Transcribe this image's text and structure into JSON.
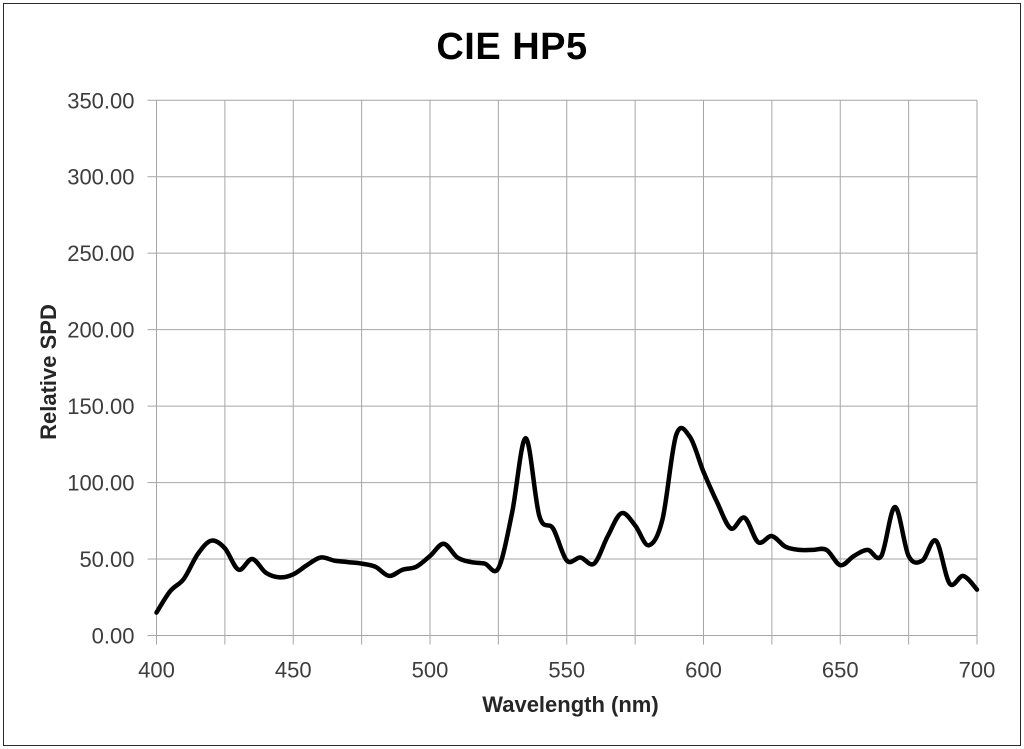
{
  "window": {
    "background": "#ffffff",
    "border_color": "#2b2b2b"
  },
  "chart": {
    "title": "CIE HP5",
    "xlabel": "Wavelength (nm)",
    "ylabel": "Relative SPD"
  },
  "colors": {
    "grid": "#a6a6a6",
    "axis": "#a6a6a6",
    "curve": "#000000",
    "tick_label": "#3d3d3d",
    "axis_title": "#262626",
    "title": "#000000"
  },
  "chart_data": {
    "type": "line",
    "title": "CIE HP5",
    "xlabel": "Wavelength (nm)",
    "ylabel": "Relative SPD",
    "xlim": [
      400,
      700
    ],
    "ylim": [
      0,
      350
    ],
    "x_ticks": [
      400,
      450,
      500,
      550,
      600,
      650,
      700
    ],
    "x_tick_labels": [
      "400",
      "450",
      "500",
      "550",
      "600",
      "650",
      "700"
    ],
    "y_ticks": [
      0,
      50,
      100,
      150,
      200,
      250,
      300,
      350
    ],
    "y_tick_labels": [
      "0.00",
      "50.00",
      "100.00",
      "150.00",
      "200.00",
      "250.00",
      "300.00",
      "350.00"
    ],
    "x_minor_grid_step": 25,
    "y_grid_step": 50,
    "grid": true,
    "legend": "none",
    "series": [
      {
        "name": "CIE HP5",
        "color": "#000000",
        "x": [
          400,
          405,
          410,
          415,
          420,
          425,
          430,
          435,
          440,
          445,
          450,
          455,
          460,
          465,
          470,
          475,
          480,
          485,
          490,
          495,
          500,
          505,
          510,
          515,
          520,
          525,
          530,
          535,
          540,
          545,
          550,
          555,
          560,
          565,
          570,
          575,
          580,
          585,
          590,
          595,
          600,
          605,
          610,
          615,
          620,
          625,
          630,
          635,
          640,
          645,
          650,
          655,
          660,
          665,
          670,
          675,
          680,
          685,
          690,
          695,
          700
        ],
        "y": [
          15,
          29,
          37,
          53,
          62,
          57,
          43,
          50,
          41,
          38,
          40,
          46,
          51,
          49,
          48,
          47,
          45,
          39,
          43,
          45,
          52,
          60,
          51,
          48,
          47,
          44,
          80,
          129,
          78,
          70,
          49,
          51,
          47,
          65,
          80,
          72,
          59,
          76,
          131,
          130,
          107,
          87,
          70,
          77,
          61,
          65,
          58,
          56,
          56,
          56,
          46,
          52,
          56,
          52,
          84,
          52,
          49,
          62,
          34,
          39,
          30
        ]
      }
    ]
  }
}
